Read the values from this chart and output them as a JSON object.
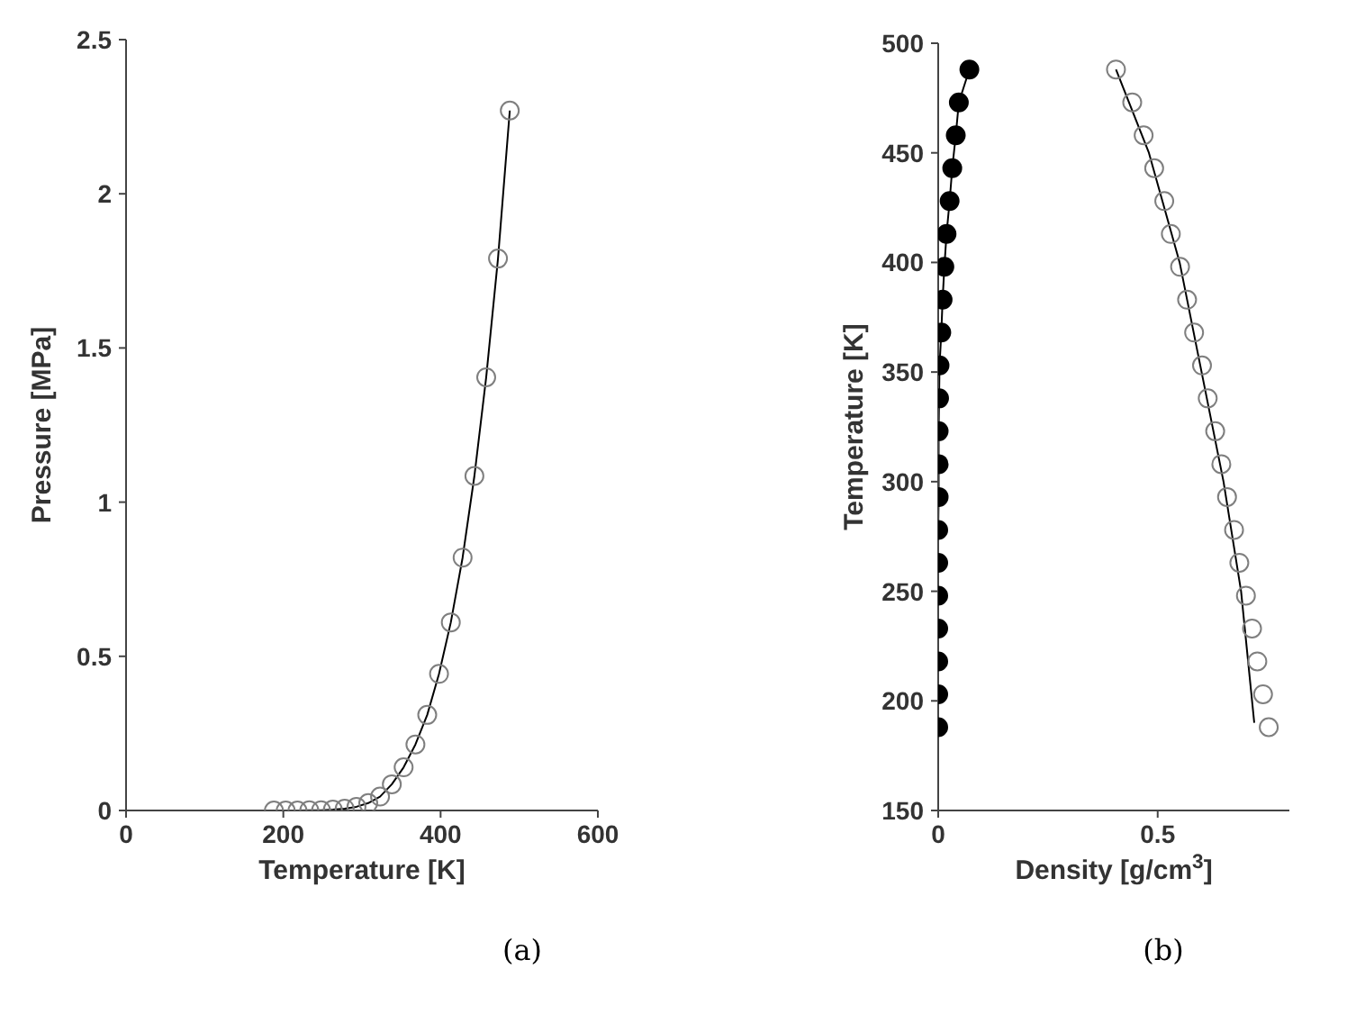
{
  "chart_data": [
    {
      "type": "line",
      "xlabel": "Temperature [K]",
      "ylabel": "Pressure [MPa]",
      "annotations": [
        "(a)"
      ],
      "xlim": [
        0,
        600
      ],
      "xticks": [
        0,
        200,
        400,
        600
      ],
      "ylim": [
        0,
        2.5
      ],
      "yticks": [
        0,
        0.5,
        1,
        1.5,
        2,
        2.5
      ],
      "grid": false,
      "legend": false,
      "series": [
        {
          "type": "scatter",
          "marker": "circle",
          "color": "#7f7f7f",
          "x": [
            188,
            203,
            218,
            233,
            248,
            263,
            278,
            293,
            308,
            323,
            338,
            353,
            368,
            383,
            398,
            413,
            428,
            443,
            458,
            473,
            488
          ],
          "values": [
            0,
            0,
            0,
            0.001,
            0.001,
            0.003,
            0.006,
            0.012,
            0.024,
            0.045,
            0.085,
            0.14,
            0.214,
            0.31,
            0.443,
            0.61,
            0.82,
            1.085,
            1.405,
            1.79,
            2.27
          ]
        },
        {
          "type": "line",
          "marker": "none",
          "color": "#000000",
          "x": [
            188,
            203,
            218,
            233,
            248,
            263,
            278,
            293,
            308,
            323,
            338,
            353,
            368,
            383,
            398,
            413,
            428,
            443,
            458,
            473,
            488
          ],
          "values": [
            0,
            0,
            0,
            0.001,
            0.001,
            0.003,
            0.006,
            0.012,
            0.024,
            0.045,
            0.085,
            0.14,
            0.214,
            0.31,
            0.443,
            0.61,
            0.82,
            1.085,
            1.405,
            1.79,
            2.27
          ]
        }
      ]
    },
    {
      "type": "line",
      "xlabel": "Density [g/cm$^{3}$]",
      "ylabel": "Temperature [K]",
      "annotations": [
        "(b)"
      ],
      "xlim": [
        0,
        0.8
      ],
      "xticks": [
        0,
        0.5
      ],
      "ylim": [
        150,
        500
      ],
      "yticks": [
        150,
        200,
        250,
        300,
        350,
        400,
        450,
        500
      ],
      "grid": false,
      "legend": false,
      "series": [
        {
          "type": "scatter",
          "marker": "circle",
          "color": "#7f7f7f",
          "x": [
            0.753,
            0.74,
            0.727,
            0.715,
            0.701,
            0.686,
            0.674,
            0.658,
            0.645,
            0.631,
            0.614,
            0.601,
            0.583,
            0.567,
            0.551,
            0.53,
            0.515,
            0.492,
            0.468,
            0.442,
            0.405
          ],
          "values": [
            188,
            203,
            218,
            233,
            248,
            263,
            278,
            293,
            308,
            323,
            338,
            353,
            368,
            383,
            398,
            413,
            428,
            443,
            458,
            473,
            488
          ]
        },
        {
          "type": "line",
          "marker": "none",
          "color": "#000000",
          "x": [
            0.72,
            0.69,
            0.65,
            0.6,
            0.55,
            0.48,
            0.405
          ],
          "values": [
            190,
            250,
            300,
            350,
            400,
            450,
            488
          ]
        },
        {
          "type": "line",
          "marker": "circle",
          "color": "#000000",
          "x": [
            0,
            0,
            0,
            0,
            0,
            0,
            0,
            0.001,
            0.001,
            0.001,
            0.002,
            0.003,
            0.007,
            0.01,
            0.014,
            0.019,
            0.026,
            0.032,
            0.04,
            0.047,
            0.071
          ],
          "values": [
            188,
            203,
            218,
            233,
            248,
            263,
            278,
            293,
            308,
            323,
            338,
            353,
            368,
            383,
            398,
            413,
            428,
            443,
            458,
            473,
            488
          ]
        }
      ]
    }
  ]
}
